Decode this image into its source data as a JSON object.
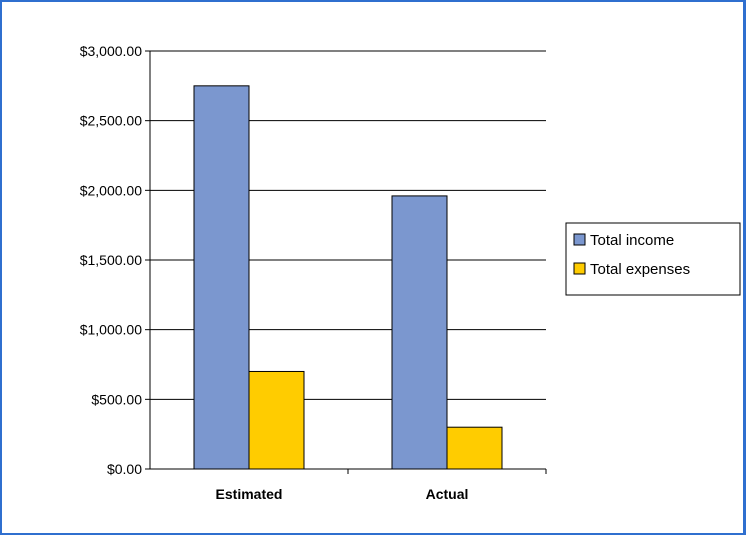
{
  "chart_data": {
    "type": "bar",
    "title": "",
    "xlabel": "",
    "ylabel": "",
    "categories": [
      "Estimated",
      "Actual"
    ],
    "series": [
      {
        "name": "Total income",
        "values": [
          2750,
          1960
        ],
        "color": "#7b97cf"
      },
      {
        "name": "Total expenses",
        "values": [
          700,
          300
        ],
        "color": "#ffcc00"
      }
    ],
    "ylim": [
      0,
      3000
    ],
    "y_ticks": [
      {
        "value": 0,
        "label": "$0.00"
      },
      {
        "value": 500,
        "label": "$500.00"
      },
      {
        "value": 1000,
        "label": "$1,000.00"
      },
      {
        "value": 1500,
        "label": "$1,500.00"
      },
      {
        "value": 2000,
        "label": "$2,000.00"
      },
      {
        "value": 2500,
        "label": "$2,500.00"
      },
      {
        "value": 3000,
        "label": "$3,000.00"
      }
    ],
    "grid": true,
    "legend_position": "right"
  }
}
